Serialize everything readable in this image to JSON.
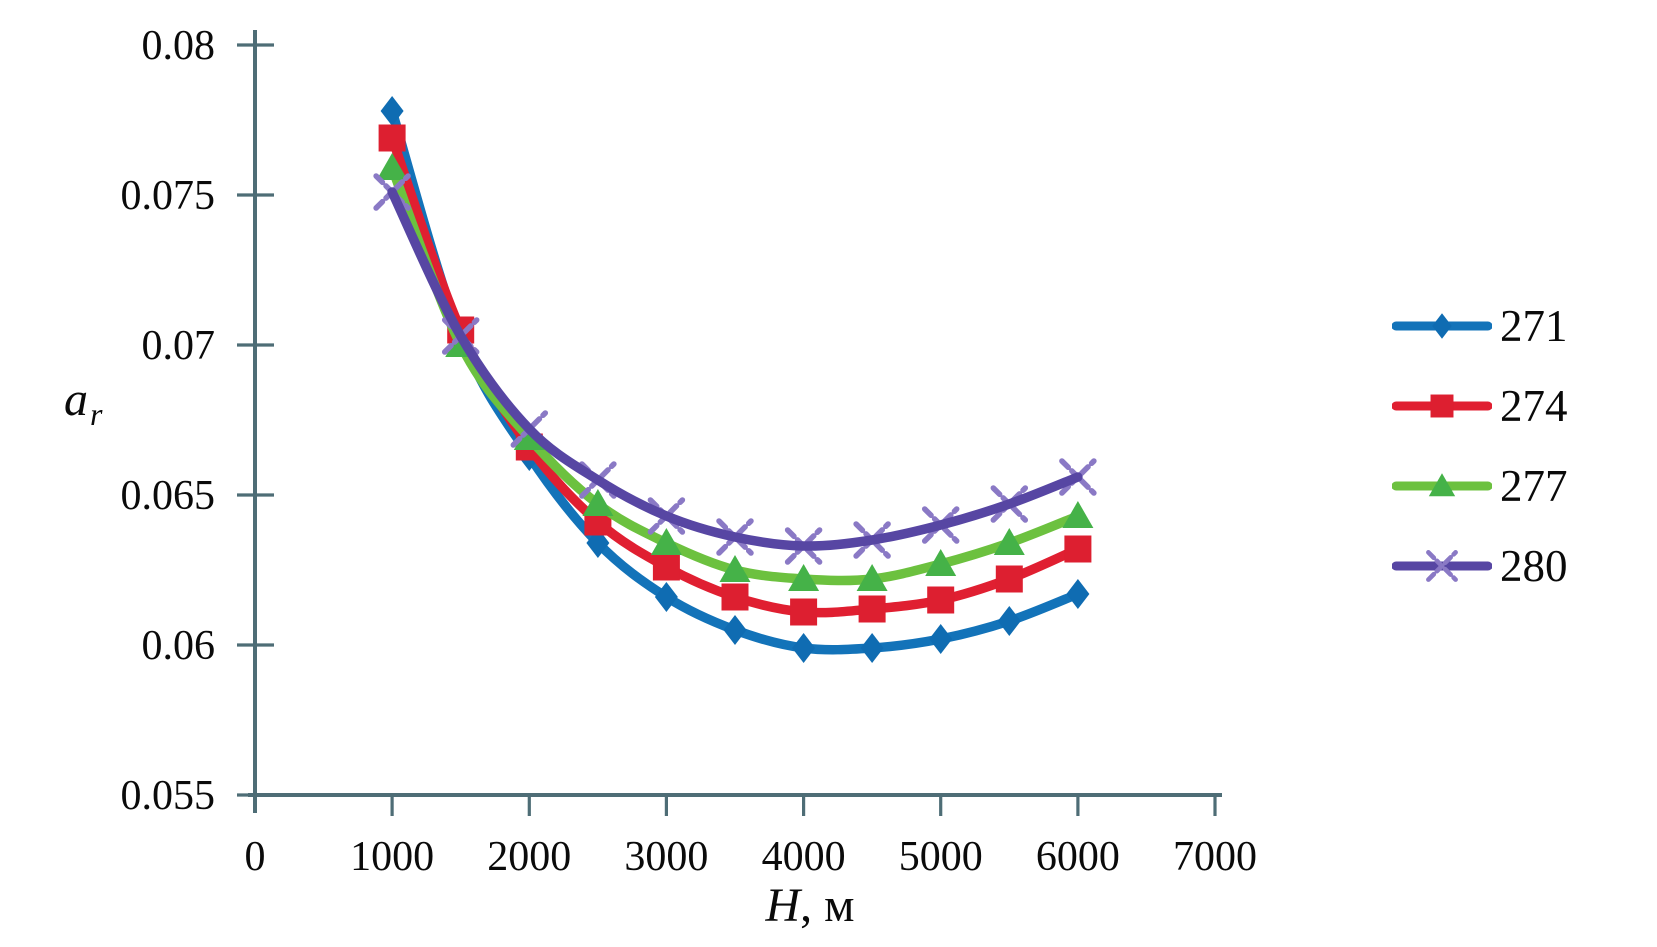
{
  "figure": {
    "background": "#ffffff",
    "axis_color": "#4e6d76",
    "text_color": "#0a0a0a"
  },
  "labels": {
    "y_axis": {
      "main": "a",
      "sub": "r"
    },
    "x_axis": {
      "main": "H",
      "rest": ", м"
    }
  },
  "chart_data": {
    "type": "line",
    "title": "",
    "xlabel": "H, м",
    "ylabel": "a_r",
    "xlim": [
      0,
      7000
    ],
    "ylim": [
      0.055,
      0.08
    ],
    "grid": false,
    "legend_position": "right",
    "x_ticks": {
      "values": [
        0,
        1000,
        2000,
        3000,
        4000,
        5000,
        6000,
        7000
      ],
      "labels": [
        "0",
        "1000",
        "2000",
        "3000",
        "4000",
        "5000",
        "6000",
        "7000"
      ]
    },
    "y_ticks": {
      "values": [
        0.055,
        0.06,
        0.065,
        0.07,
        0.075,
        0.08
      ],
      "labels": [
        "0.055",
        "0.06",
        "0.065",
        "0.07",
        "0.075",
        "0.08"
      ]
    },
    "x": [
      1000,
      1500,
      2000,
      2500,
      3000,
      3500,
      4000,
      4500,
      5000,
      5500,
      6000
    ],
    "series": [
      {
        "name": "271",
        "marker": "diamond",
        "color": "#1373b9",
        "marker_color": "#0f6cb2",
        "values": [
          0.0778,
          0.0703,
          0.0663,
          0.0634,
          0.0616,
          0.0605,
          0.0599,
          0.0599,
          0.0602,
          0.0608,
          0.0617
        ]
      },
      {
        "name": "274",
        "marker": "square",
        "color": "#e01f31",
        "marker_color": "#dd1f30",
        "values": [
          0.0769,
          0.0705,
          0.0666,
          0.0641,
          0.0626,
          0.0616,
          0.0611,
          0.0612,
          0.0615,
          0.0622,
          0.0632
        ]
      },
      {
        "name": "277",
        "marker": "triangle",
        "color": "#6cc13f",
        "marker_color": "#45b248",
        "values": [
          0.0759,
          0.07,
          0.0669,
          0.0647,
          0.0634,
          0.0625,
          0.0622,
          0.0622,
          0.0627,
          0.0634,
          0.0643
        ]
      },
      {
        "name": "280",
        "marker": "x",
        "color": "#5746a3",
        "marker_color": "#8a79c5",
        "values": [
          0.0751,
          0.0703,
          0.0672,
          0.0655,
          0.0643,
          0.0636,
          0.0633,
          0.0635,
          0.064,
          0.0647,
          0.0656
        ]
      }
    ]
  }
}
